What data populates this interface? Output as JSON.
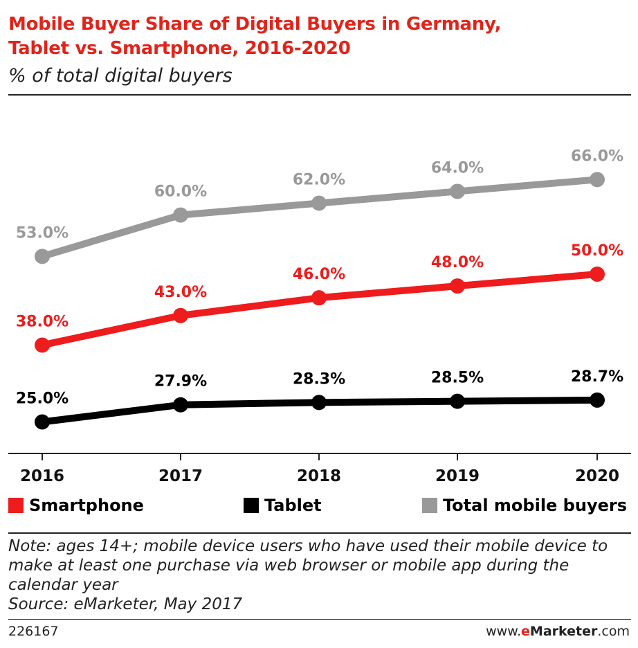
{
  "header": {
    "title_line1": "Mobile Buyer Share of Digital Buyers in Germany,",
    "title_line2": "Tablet vs. Smartphone, 2016-2020",
    "subtitle": "% of total digital buyers"
  },
  "chart_data": {
    "type": "line",
    "title": "Mobile Buyer Share of Digital Buyers in Germany, Tablet vs. Smartphone, 2016-2020",
    "ylabel": "% of total digital buyers",
    "categories": [
      "2016",
      "2017",
      "2018",
      "2019",
      "2020"
    ],
    "series": [
      {
        "name": "Total mobile buyers",
        "color": "#999999",
        "values": [
          53.0,
          60.0,
          62.0,
          64.0,
          66.0
        ],
        "labels": [
          "53.0%",
          "60.0%",
          "62.0%",
          "64.0%",
          "66.0%"
        ]
      },
      {
        "name": "Smartphone",
        "color": "#ee1c1c",
        "values": [
          38.0,
          43.0,
          46.0,
          48.0,
          50.0
        ],
        "labels": [
          "38.0%",
          "43.0%",
          "46.0%",
          "48.0%",
          "50.0%"
        ]
      },
      {
        "name": "Tablet",
        "color": "#000000",
        "values": [
          25.0,
          27.9,
          28.3,
          28.5,
          28.7
        ],
        "labels": [
          "25.0%",
          "27.9%",
          "28.3%",
          "28.5%",
          "28.7%"
        ]
      }
    ],
    "grid": false,
    "legend_position": "bottom"
  },
  "legend": [
    {
      "label": "Smartphone",
      "color": "#ee1c1c"
    },
    {
      "label": "Tablet",
      "color": "#000000"
    },
    {
      "label": "Total mobile buyers",
      "color": "#999999"
    }
  ],
  "notes": {
    "line1": "Note: ages 14+; mobile device users who have used their mobile device to",
    "line2": "make at least one purchase via web browser or mobile app during the",
    "line3": "calendar year",
    "source": "Source: eMarketer, May 2017"
  },
  "footer": {
    "chart_id": "226167",
    "brand_prefix": "www.",
    "brand_e": "e",
    "brand_name": "Marketer",
    "brand_suffix": ".com"
  }
}
